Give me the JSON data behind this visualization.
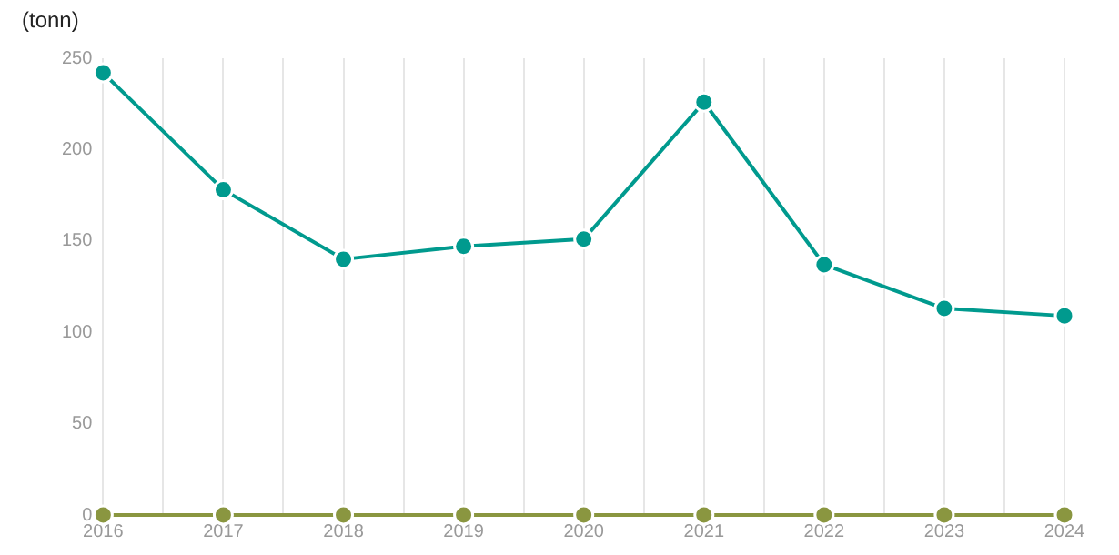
{
  "chart_data": {
    "type": "line",
    "ylabel": "(tonn)",
    "x": [
      2016,
      2017,
      2018,
      2019,
      2020,
      2021,
      2022,
      2023,
      2024
    ],
    "series": [
      {
        "color": "#009a8e",
        "values": [
          242,
          178,
          140,
          147,
          151,
          226,
          137,
          113,
          109
        ]
      },
      {
        "color": "#8a9640",
        "values": [
          0,
          0,
          0,
          0,
          0,
          0,
          0,
          0,
          0
        ]
      }
    ],
    "xlim": [
      2016,
      2024
    ],
    "xticks": [
      2016,
      {
        "value": 2016.5,
        "label": null
      },
      2017,
      {
        "value": 2017.5,
        "label": null
      },
      2018,
      {
        "value": 2018.5,
        "label": null
      },
      2019,
      {
        "value": 2019.5,
        "label": null
      },
      2020,
      {
        "value": 2020.5,
        "label": null
      },
      2021,
      {
        "value": 2021.5,
        "label": null
      },
      2022,
      {
        "value": 2022.5,
        "label": null
      },
      2023,
      {
        "value": 2023.5,
        "label": null
      },
      2024
    ],
    "ylim": [
      0,
      250
    ],
    "yticks": [
      0,
      50,
      100,
      150,
      200,
      250
    ],
    "grid": "x",
    "legend": false,
    "marker": "circle",
    "line_style": "solid"
  }
}
